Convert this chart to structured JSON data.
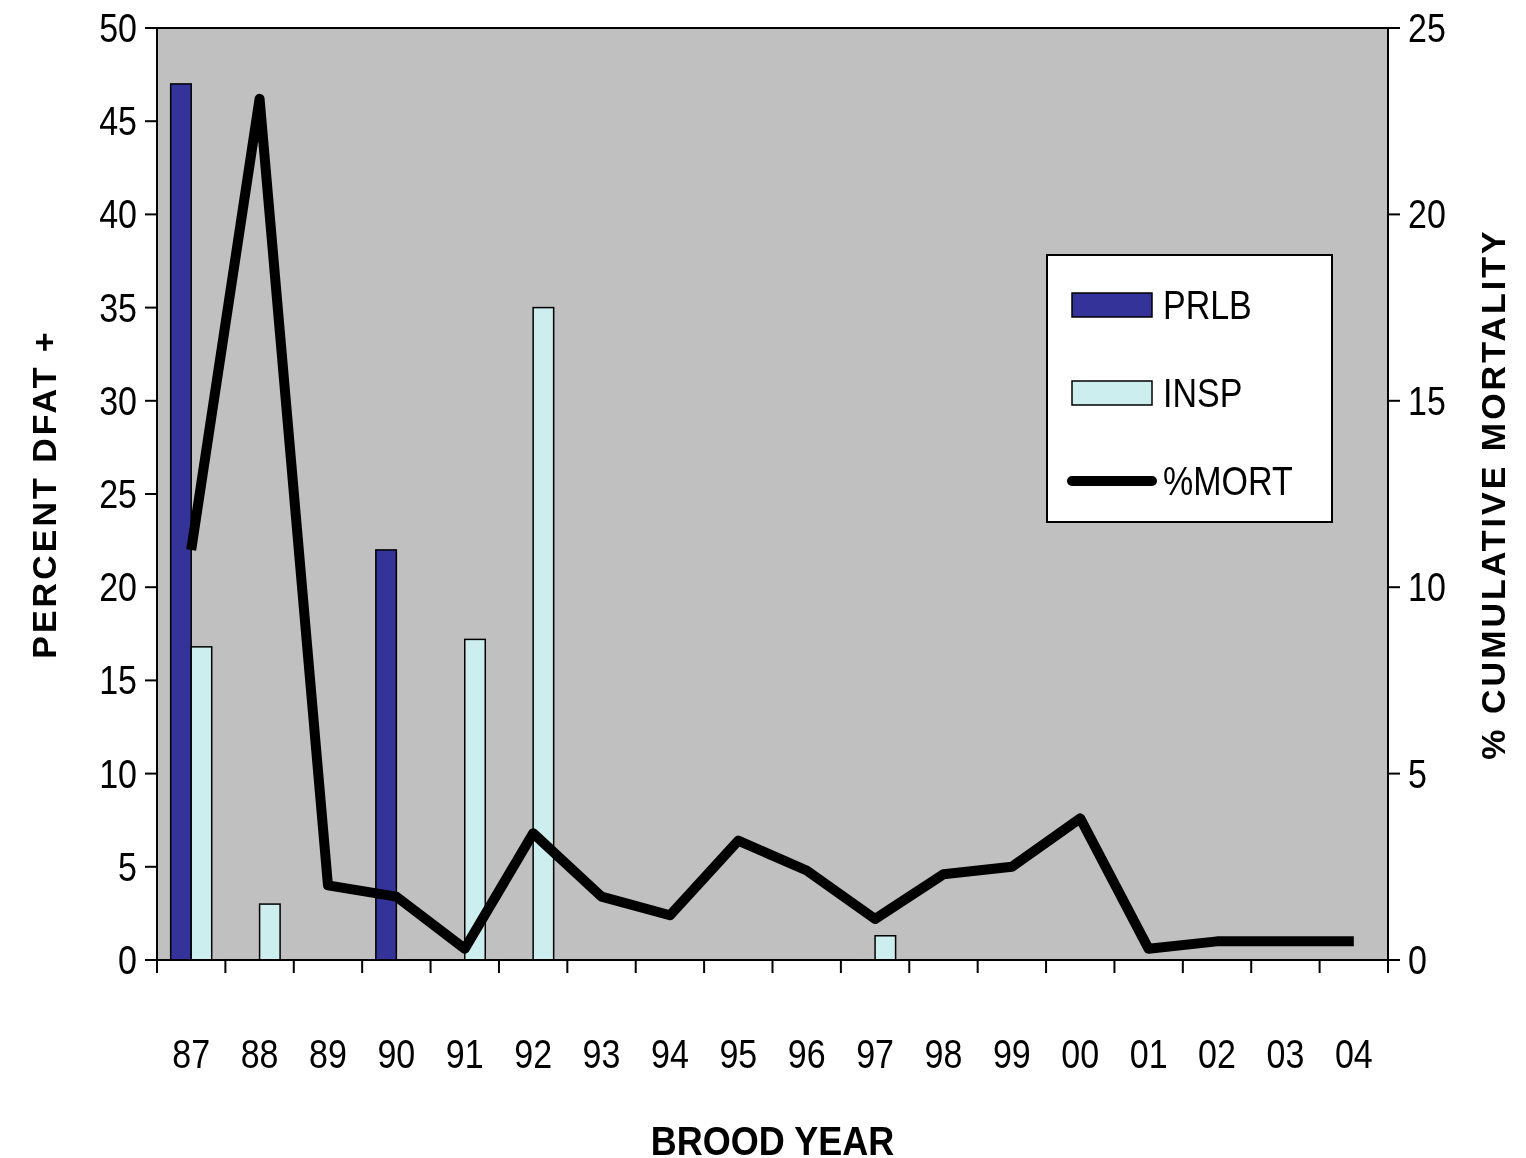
{
  "chart_data": {
    "type": "bar",
    "xlabel": "BROOD YEAR",
    "ylabel": "PERCENT DFAT +",
    "y2label": "% CUMULATIVE MORTALITY",
    "categories": [
      "87",
      "88",
      "89",
      "90",
      "91",
      "92",
      "93",
      "94",
      "95",
      "96",
      "97",
      "98",
      "99",
      "00",
      "01",
      "02",
      "03",
      "04"
    ],
    "series": [
      {
        "name": "PRLB",
        "color": "#333399",
        "values": [
          47,
          null,
          null,
          22,
          null,
          null,
          null,
          null,
          null,
          null,
          null,
          null,
          null,
          null,
          null,
          null,
          null,
          null
        ]
      },
      {
        "name": "INSP",
        "color": "#cceeee",
        "values": [
          16.8,
          3,
          null,
          null,
          17.2,
          35,
          null,
          null,
          null,
          null,
          1.3,
          null,
          null,
          null,
          null,
          null,
          null,
          null
        ]
      },
      {
        "name": "%MORT",
        "type": "line",
        "axis": "y2",
        "color": "#000000",
        "values": [
          11,
          23.1,
          2,
          1.7,
          0.3,
          3.4,
          1.7,
          1.2,
          3.2,
          2.4,
          1.1,
          2.3,
          2.5,
          3.8,
          0.3,
          0.5,
          0.5,
          0.5
        ]
      }
    ],
    "ylim": [
      0,
      50
    ],
    "yticks": [
      0,
      5,
      10,
      15,
      20,
      25,
      30,
      35,
      40,
      45,
      50
    ],
    "y2lim": [
      0,
      25
    ],
    "y2ticks": [
      0,
      5,
      10,
      15,
      20,
      25
    ],
    "legend": "top right",
    "grid": false
  }
}
